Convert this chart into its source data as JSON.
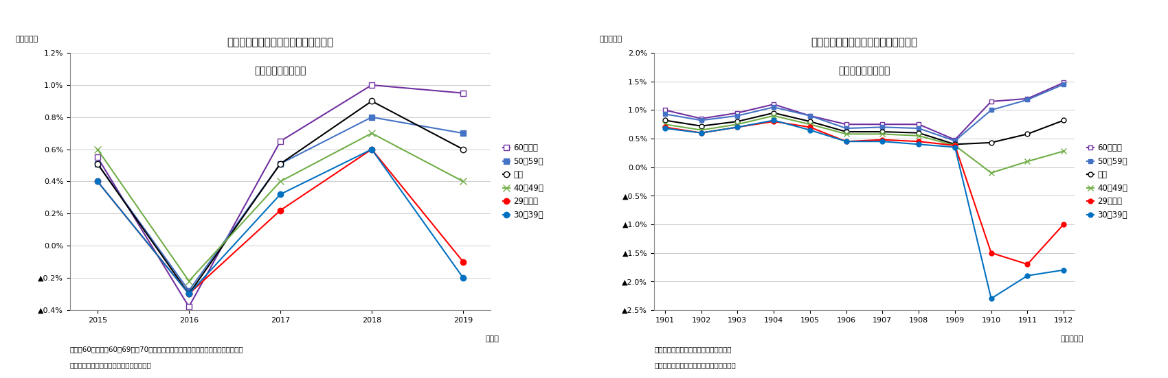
{
  "chart1": {
    "title": "世帯主の年齢階級別・消費者物価上昇",
    "subtitle": "生鮮食品を除く総合",
    "ylabel": "（前年比）",
    "xlabel": "（年）",
    "note1": "（注）60歳以上は60〜69歳と70歳以上の上昇率を家計調査のウェイトで加重平均",
    "note2": "（資料）総務省統計局「消費者物価指数」",
    "x": [
      2015,
      2016,
      2017,
      2018,
      2019
    ],
    "ylim": [
      -0.004,
      0.012
    ],
    "yticks": [
      -0.004,
      -0.002,
      0.0,
      0.002,
      0.004,
      0.006,
      0.008,
      0.01,
      0.012
    ],
    "ytick_labels": [
      "▲0.4%",
      "▲0.2%",
      "0.0%",
      "0.2%",
      "0.4%",
      "0.6%",
      "0.8%",
      "1.0%",
      "1.2%"
    ],
    "series": [
      {
        "label": "60歳以上",
        "color": "#7030A0",
        "marker": "s",
        "markersize": 6,
        "markerfacecolor": "white",
        "markeredgecolor": "#7030A0",
        "values": [
          0.0055,
          -0.0038,
          0.0065,
          0.01,
          0.0095
        ]
      },
      {
        "label": "50〜59歳",
        "color": "#4472C4",
        "marker": "s",
        "markersize": 6,
        "markerfacecolor": "#4472C4",
        "markeredgecolor": "#4472C4",
        "values": [
          0.0051,
          -0.0028,
          0.0051,
          0.008,
          0.007
        ]
      },
      {
        "label": "平均",
        "color": "#000000",
        "marker": "o",
        "markersize": 6,
        "markerfacecolor": "white",
        "markeredgecolor": "#000000",
        "values": [
          0.0051,
          -0.003,
          0.0051,
          0.009,
          0.006
        ]
      },
      {
        "label": "40〜49歳",
        "color": "#70AD47",
        "marker": "x",
        "markersize": 7,
        "markerfacecolor": "#70AD47",
        "markeredgecolor": "#70AD47",
        "values": [
          0.006,
          -0.0022,
          0.004,
          0.007,
          0.004
        ]
      },
      {
        "label": "29歳以下",
        "color": "#FF0000",
        "marker": "o",
        "markersize": 6,
        "markerfacecolor": "#FF0000",
        "markeredgecolor": "#FF0000",
        "values": [
          0.004,
          -0.003,
          0.0022,
          0.006,
          -0.001
        ]
      },
      {
        "label": "30〜39歳",
        "color": "#0070C0",
        "marker": "o",
        "markersize": 6,
        "markerfacecolor": "#0070C0",
        "markeredgecolor": "#0070C0",
        "values": [
          0.004,
          -0.003,
          0.0032,
          0.006,
          -0.002
        ]
      }
    ]
  },
  "chart2": {
    "title": "世帯主の年齢階級別・消費者物価上昇",
    "subtitle": "生鮮食品を除く総合",
    "ylabel": "（前年比）",
    "xlabel": "（年・月）",
    "note1": "（注）ニッセイ基礎研究所による試算値",
    "note2": "（資料）総務省統計局「消費者物価指数」",
    "x": [
      1901,
      1902,
      1903,
      1904,
      1905,
      1906,
      1907,
      1908,
      1909,
      1910,
      1911,
      1912
    ],
    "ylim": [
      -0.025,
      0.02
    ],
    "yticks": [
      -0.025,
      -0.02,
      -0.015,
      -0.01,
      -0.005,
      0.0,
      0.005,
      0.01,
      0.015,
      0.02
    ],
    "ytick_labels": [
      "▲2.5%",
      "▲2.0%",
      "▲1.5%",
      "▲1.0%",
      "▲0.5%",
      "0.0%",
      "0.5%",
      "1.0%",
      "1.5%",
      "2.0%"
    ],
    "series": [
      {
        "label": "60歳以上",
        "color": "#7030A0",
        "marker": "s",
        "markersize": 5,
        "markerfacecolor": "white",
        "markeredgecolor": "#7030A0",
        "values": [
          0.01,
          0.0085,
          0.0095,
          0.011,
          0.009,
          0.0075,
          0.0075,
          0.0075,
          0.0048,
          0.0115,
          0.012,
          0.0148
        ]
      },
      {
        "label": "50〜59歳",
        "color": "#4472C4",
        "marker": "s",
        "markersize": 5,
        "markerfacecolor": "#4472C4",
        "markeredgecolor": "#4472C4",
        "values": [
          0.0093,
          0.0082,
          0.009,
          0.0105,
          0.009,
          0.0068,
          0.007,
          0.0068,
          0.0046,
          0.01,
          0.0118,
          0.0145
        ]
      },
      {
        "label": "平均",
        "color": "#000000",
        "marker": "o",
        "markersize": 5,
        "markerfacecolor": "white",
        "markeredgecolor": "#000000",
        "values": [
          0.0082,
          0.0072,
          0.008,
          0.0095,
          0.008,
          0.0062,
          0.0062,
          0.006,
          0.004,
          0.0043,
          0.0058,
          0.0082
        ]
      },
      {
        "label": "40〜49歳",
        "color": "#70AD47",
        "marker": "x",
        "markersize": 6,
        "markerfacecolor": "#70AD47",
        "markeredgecolor": "#70AD47",
        "values": [
          0.0075,
          0.0065,
          0.0075,
          0.009,
          0.0075,
          0.0058,
          0.0058,
          0.0055,
          0.0038,
          -0.001,
          0.001,
          0.0028
        ]
      },
      {
        "label": "29歳以下",
        "color": "#FF0000",
        "marker": "o",
        "markersize": 5,
        "markerfacecolor": "#FF0000",
        "markeredgecolor": "#FF0000",
        "values": [
          0.007,
          0.006,
          0.007,
          0.008,
          0.007,
          0.0045,
          0.0048,
          0.0045,
          0.0038,
          -0.015,
          -0.017,
          -0.01
        ]
      },
      {
        "label": "30〜39歳",
        "color": "#0070C0",
        "marker": "o",
        "markersize": 5,
        "markerfacecolor": "#0070C0",
        "markeredgecolor": "#0070C0",
        "values": [
          0.0068,
          0.006,
          0.007,
          0.0082,
          0.0065,
          0.0045,
          0.0045,
          0.004,
          0.0035,
          -0.023,
          -0.019,
          -0.018
        ]
      }
    ]
  }
}
